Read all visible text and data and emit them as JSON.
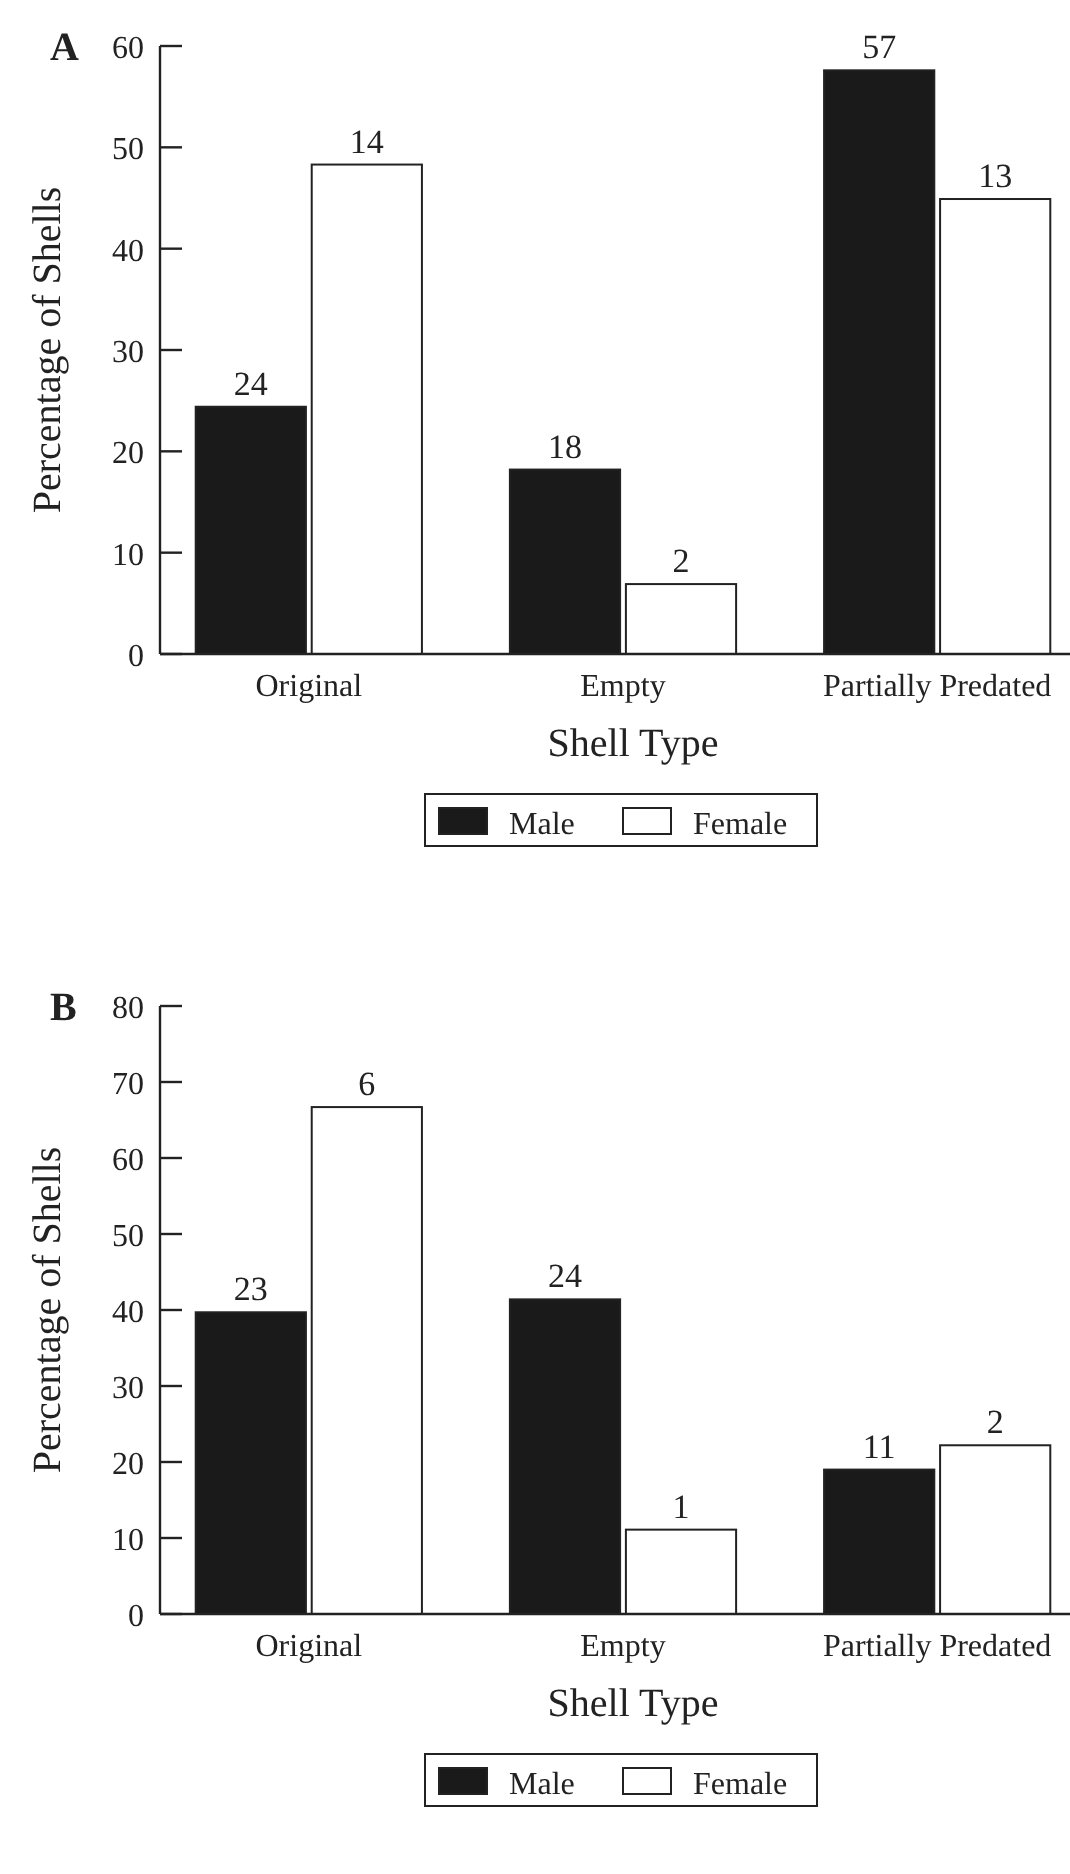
{
  "chart_data": [
    {
      "type": "bar",
      "title": "A",
      "xlabel": "Shell Type",
      "ylabel": "Percentage of Shells",
      "categories": [
        "Original",
        "Empty",
        "Partially Predated"
      ],
      "series": [
        {
          "name": "Male",
          "color": "#1a1a1a",
          "values": [
            24.4,
            18.2,
            57.6
          ]
        },
        {
          "name": "Female",
          "color": "#ffffff",
          "values": [
            48.3,
            6.9,
            44.9
          ]
        }
      ],
      "annotations": [
        {
          "text": "24",
          "x": "Original",
          "y": 24.4
        },
        {
          "text": "14",
          "x": "Original",
          "y": 48.3
        },
        {
          "text": "18",
          "x": "Empty",
          "y": 18.2
        },
        {
          "text": "2",
          "x": "Empty",
          "y": 6.9
        },
        {
          "text": "57",
          "x": "Partially Predated",
          "y": 57.6
        },
        {
          "text": "13",
          "x": "Partially Predated",
          "y": 44.9
        }
      ],
      "ylim": [
        0,
        60
      ],
      "yticks": [
        0,
        10,
        20,
        30,
        40,
        50,
        60
      ],
      "grid": false,
      "legend": "bottom"
    },
    {
      "type": "bar",
      "title": "B",
      "xlabel": "Shell Type",
      "ylabel": "Percentage of Shells",
      "categories": [
        "Original",
        "Empty",
        "Partially Predated"
      ],
      "series": [
        {
          "name": "Male",
          "color": "#1a1a1a",
          "values": [
            39.7,
            41.4,
            19.0
          ]
        },
        {
          "name": "Female",
          "color": "#ffffff",
          "values": [
            66.7,
            11.1,
            22.2
          ]
        }
      ],
      "annotations": [
        {
          "text": "23",
          "x": "Original",
          "y": 39.7
        },
        {
          "text": "6",
          "x": "Original",
          "y": 66.7
        },
        {
          "text": "24",
          "x": "Empty",
          "y": 41.4
        },
        {
          "text": "1",
          "x": "Empty",
          "y": 11.1
        },
        {
          "text": "11",
          "x": "Partially Predated",
          "y": 19.0
        },
        {
          "text": "2",
          "x": "Partially Predated",
          "y": 22.2
        }
      ],
      "ylim": [
        0,
        80
      ],
      "yticks": [
        0,
        10,
        20,
        30,
        40,
        50,
        60,
        70,
        80
      ],
      "grid": false,
      "legend": "bottom"
    }
  ]
}
